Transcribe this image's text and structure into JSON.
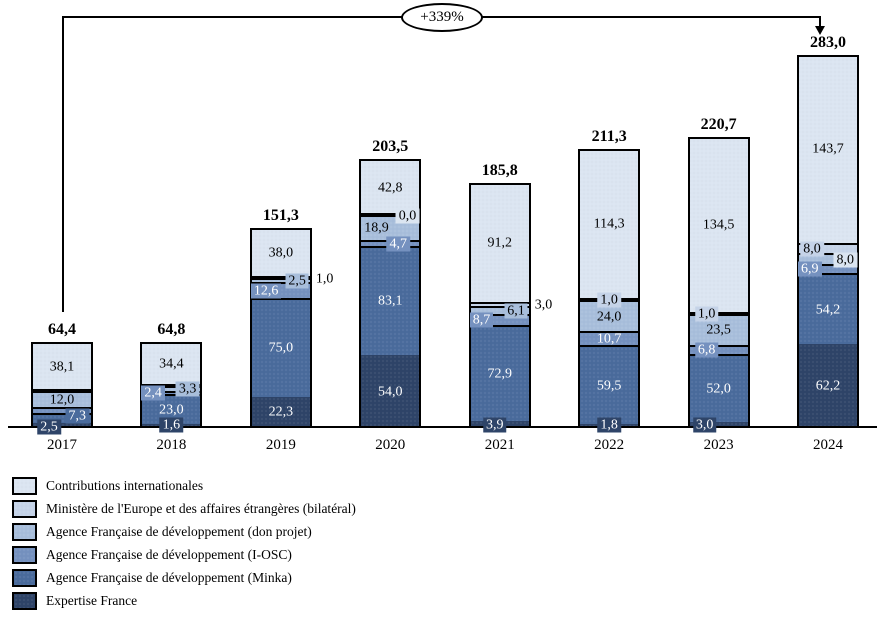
{
  "chart_data": {
    "type": "bar",
    "stacked": true,
    "title": "",
    "xlabel": "",
    "ylabel": "",
    "grid": false,
    "legend_position": "bottom-left",
    "decimal_separator": ",",
    "annotation": {
      "growth_label": "+339%"
    },
    "categories": [
      "2017",
      "2018",
      "2019",
      "2020",
      "2021",
      "2022",
      "2023",
      "2024"
    ],
    "totals": [
      64.4,
      64.8,
      151.3,
      203.5,
      185.8,
      211.3,
      220.7,
      283.0
    ],
    "totals_display": [
      "64,4",
      "64,8",
      "151,3",
      "203,5",
      "185,8",
      "211,3",
      "220,7",
      "283,0"
    ],
    "series": [
      {
        "name": "Expertise France",
        "color": "#2e4468",
        "text_color": "#ffffff",
        "values": [
          2.5,
          1.6,
          22.3,
          54.0,
          3.9,
          1.8,
          3.0,
          62.2
        ],
        "labels": [
          {
            "t": "2,5",
            "p": "below-left"
          },
          {
            "t": "1,6",
            "p": "below"
          },
          {
            "t": "22,3",
            "p": "inside"
          },
          {
            "t": "54,0",
            "p": "inside"
          },
          {
            "t": "3,9",
            "p": "below",
            "dx": -5
          },
          {
            "t": "1,8",
            "p": "below"
          },
          {
            "t": "3,0",
            "p": "below",
            "dx": -14
          },
          {
            "t": "62,2",
            "p": "inside"
          }
        ]
      },
      {
        "name": "Agence Française de développement (Minka)",
        "color": "#4a6b9c",
        "text_color": "#ffffff",
        "values": [
          7.3,
          23.0,
          75.0,
          83.1,
          72.9,
          59.5,
          52.0,
          54.2
        ],
        "labels": [
          {
            "t": "7,3",
            "p": "axis-right"
          },
          {
            "t": "23,0",
            "p": "inside"
          },
          {
            "t": "75,0",
            "p": "inside"
          },
          {
            "t": "83,1",
            "p": "inside"
          },
          {
            "t": "72,9",
            "p": "inside"
          },
          {
            "t": "59,5",
            "p": "inside"
          },
          {
            "t": "52,0",
            "p": "inside"
          },
          {
            "t": "54,2",
            "p": "inside"
          }
        ]
      },
      {
        "name": "Agence Française de développement (I-OSC)",
        "color": "#7591bf",
        "text_color": "#ffffff",
        "values": [
          4.5,
          2.4,
          12.6,
          4.7,
          8.7,
          10.7,
          6.8,
          6.9
        ],
        "labels": [
          null,
          {
            "t": "2,4",
            "p": "box-left"
          },
          {
            "t": "12,6",
            "p": "box-left"
          },
          {
            "t": "4,7",
            "p": "box-center",
            "dx": 8
          },
          {
            "t": "8,7",
            "p": "box-left"
          },
          {
            "t": "10,7",
            "p": "inside"
          },
          {
            "t": "6,8",
            "p": "box-center",
            "dx": -12
          },
          {
            "t": "6,9",
            "p": "box-left"
          }
        ]
      },
      {
        "name": "Agence Française de développement (don projet)",
        "color": "#a8bedb",
        "text_color": "#000000",
        "values": [
          12.0,
          3.3,
          2.5,
          18.9,
          6.1,
          24.0,
          23.5,
          8.0
        ],
        "labels": [
          {
            "t": "12,0",
            "p": "inside"
          },
          {
            "t": "3,3",
            "p": "box-right"
          },
          {
            "t": "2,5",
            "p": "box-right"
          },
          {
            "t": "18,9",
            "p": "inside-left"
          },
          {
            "t": "6,1",
            "p": "box-right"
          },
          {
            "t": "24,0",
            "p": "inside"
          },
          {
            "t": "23,5",
            "p": "inside"
          },
          {
            "t": "8,0",
            "p": "edge-right"
          }
        ]
      },
      {
        "name": "Ministère de l'Europe et des affaires étrangères (bilatéral)",
        "color": "#c5d3e8",
        "text_color": "#000000",
        "values": [
          0.0,
          0.1,
          1.0,
          0.0,
          3.0,
          1.0,
          1.0,
          8.0
        ],
        "labels": [
          null,
          null,
          {
            "t": "1,0",
            "p": "outside-right"
          },
          {
            "t": "0,0",
            "p": "edge-right"
          },
          {
            "t": "3,0",
            "p": "outside-right"
          },
          {
            "t": "1,0",
            "p": "box-center"
          },
          {
            "t": "1,0",
            "p": "box-center",
            "dx": -12
          },
          {
            "t": "8,0",
            "p": "box-center",
            "dx": -16
          }
        ]
      },
      {
        "name": "Contributions internationales",
        "color": "#dbe5f1",
        "text_color": "#000000",
        "values": [
          38.1,
          34.4,
          38.0,
          42.8,
          91.2,
          114.3,
          134.5,
          143.7
        ],
        "labels": [
          {
            "t": "38,1",
            "p": "inside"
          },
          {
            "t": "34,4",
            "p": "inside"
          },
          {
            "t": "38,0",
            "p": "inside"
          },
          {
            "t": "42,8",
            "p": "inside"
          },
          {
            "t": "91,2",
            "p": "inside"
          },
          {
            "t": "114,3",
            "p": "inside"
          },
          {
            "t": "134,5",
            "p": "inside"
          },
          {
            "t": "143,7",
            "p": "inside"
          }
        ]
      }
    ]
  }
}
